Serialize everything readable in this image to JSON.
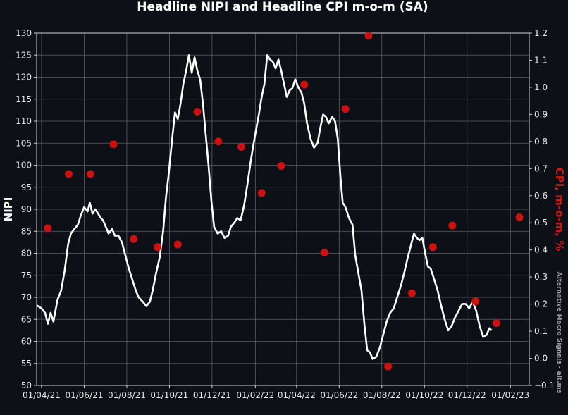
{
  "chart_data": {
    "type": "line",
    "title": "Headline NIPI and Headline CPI m-o-m (SA)",
    "watermark": "Alternative Macro Signals - alt.ms",
    "x_ticks": [
      "01/04/21",
      "01/06/21",
      "01/08/21",
      "01/10/21",
      "01/12/21",
      "01/02/22",
      "01/04/22",
      "01/06/22",
      "01/08/22",
      "01/10/22",
      "01/12/22",
      "01/02/23"
    ],
    "x_range": [
      "2021-03-25",
      "2023-02-28"
    ],
    "left_axis": {
      "label": "NIPI",
      "ylim": [
        50,
        130
      ],
      "ticks": [
        "50",
        "55",
        "60",
        "65",
        "70",
        "75",
        "80",
        "85",
        "90",
        "95",
        "100",
        "105",
        "110",
        "115",
        "120",
        "125",
        "130"
      ]
    },
    "right_axis": {
      "label": "CPI, m-o-m, %",
      "ylim": [
        -0.1,
        1.2
      ],
      "ticks": [
        "−0.1",
        "0.0",
        "0.1",
        "0.2",
        "0.3",
        "0.4",
        "0.5",
        "0.6",
        "0.7",
        "0.8",
        "0.9",
        "1.0",
        "1.1",
        "1.2"
      ]
    },
    "grid": true,
    "colors": {
      "background": "#0d1117",
      "grid": "#5a5f66",
      "nipi_line": "#ffffff",
      "cpi_marker": "#cc1111",
      "right_label": "#dd1111"
    },
    "series": [
      {
        "axis": "left",
        "style": "line",
        "points": [
          [
            "2021-03-25",
            68.2
          ],
          [
            "2021-04-01",
            67.5
          ],
          [
            "2021-04-06",
            66.5
          ],
          [
            "2021-04-10",
            64.0
          ],
          [
            "2021-04-14",
            66.5
          ],
          [
            "2021-04-18",
            64.5
          ],
          [
            "2021-04-24",
            69.5
          ],
          [
            "2021-04-29",
            71.5
          ],
          [
            "2021-05-04",
            76.0
          ],
          [
            "2021-05-09",
            82.0
          ],
          [
            "2021-05-13",
            84.5
          ],
          [
            "2021-05-18",
            85.5
          ],
          [
            "2021-05-23",
            86.5
          ],
          [
            "2021-05-27",
            88.5
          ],
          [
            "2021-06-01",
            90.5
          ],
          [
            "2021-06-06",
            89.5
          ],
          [
            "2021-06-09",
            91.5
          ],
          [
            "2021-06-13",
            89.0
          ],
          [
            "2021-06-17",
            90.0
          ],
          [
            "2021-06-21",
            89.0
          ],
          [
            "2021-06-25",
            88.0
          ],
          [
            "2021-06-28",
            87.5
          ],
          [
            "2021-07-02",
            86.0
          ],
          [
            "2021-07-06",
            84.5
          ],
          [
            "2021-07-11",
            85.5
          ],
          [
            "2021-07-15",
            84.0
          ],
          [
            "2021-07-20",
            84.0
          ],
          [
            "2021-07-25",
            82.5
          ],
          [
            "2021-07-30",
            79.5
          ],
          [
            "2021-08-04",
            76.5
          ],
          [
            "2021-08-09",
            74.0
          ],
          [
            "2021-08-14",
            71.5
          ],
          [
            "2021-08-18",
            70.0
          ],
          [
            "2021-08-24",
            69.0
          ],
          [
            "2021-08-29",
            68.0
          ],
          [
            "2021-09-03",
            69.0
          ],
          [
            "2021-09-07",
            71.5
          ],
          [
            "2021-09-12",
            75.5
          ],
          [
            "2021-09-17",
            79.0
          ],
          [
            "2021-09-22",
            85.0
          ],
          [
            "2021-09-26",
            92.5
          ],
          [
            "2021-09-30",
            98.0
          ],
          [
            "2021-10-05",
            106.0
          ],
          [
            "2021-10-09",
            112.0
          ],
          [
            "2021-10-13",
            110.5
          ],
          [
            "2021-10-17",
            114.0
          ],
          [
            "2021-10-21",
            118.5
          ],
          [
            "2021-10-25",
            121.5
          ],
          [
            "2021-10-29",
            125.0
          ],
          [
            "2021-11-02",
            121.0
          ],
          [
            "2021-11-06",
            124.5
          ],
          [
            "2021-11-10",
            121.5
          ],
          [
            "2021-11-14",
            119.5
          ],
          [
            "2021-11-18",
            114.0
          ],
          [
            "2021-11-22",
            107.0
          ],
          [
            "2021-11-26",
            100.0
          ],
          [
            "2021-11-30",
            92.0
          ],
          [
            "2021-12-04",
            86.0
          ],
          [
            "2021-12-09",
            84.5
          ],
          [
            "2021-12-14",
            85.0
          ],
          [
            "2021-12-19",
            83.5
          ],
          [
            "2021-12-24",
            84.0
          ],
          [
            "2021-12-28",
            86.0
          ],
          [
            "2022-01-02",
            87.0
          ],
          [
            "2022-01-06",
            88.0
          ],
          [
            "2022-01-11",
            87.5
          ],
          [
            "2022-01-16",
            91.0
          ],
          [
            "2022-01-21",
            96.0
          ],
          [
            "2022-01-25",
            100.5
          ],
          [
            "2022-01-29",
            104.5
          ],
          [
            "2022-02-02",
            108.0
          ],
          [
            "2022-02-06",
            111.5
          ],
          [
            "2022-02-10",
            115.5
          ],
          [
            "2022-02-14",
            118.5
          ],
          [
            "2022-02-18",
            125.0
          ],
          [
            "2022-02-22",
            124.0
          ],
          [
            "2022-02-26",
            123.5
          ],
          [
            "2022-03-02",
            122.0
          ],
          [
            "2022-03-06",
            124.0
          ],
          [
            "2022-03-10",
            121.5
          ],
          [
            "2022-03-14",
            118.5
          ],
          [
            "2022-03-18",
            115.5
          ],
          [
            "2022-03-22",
            117.0
          ],
          [
            "2022-03-26",
            117.5
          ],
          [
            "2022-03-30",
            119.5
          ],
          [
            "2022-04-04",
            117.5
          ],
          [
            "2022-04-08",
            116.5
          ],
          [
            "2022-04-12",
            114.0
          ],
          [
            "2022-04-16",
            109.5
          ],
          [
            "2022-04-21",
            106.0
          ],
          [
            "2022-04-26",
            104.0
          ],
          [
            "2022-05-01",
            105.0
          ],
          [
            "2022-05-05",
            108.5
          ],
          [
            "2022-05-09",
            111.5
          ],
          [
            "2022-05-13",
            111.0
          ],
          [
            "2022-05-17",
            109.5
          ],
          [
            "2022-05-22",
            111.0
          ],
          [
            "2022-05-26",
            110.0
          ],
          [
            "2022-05-30",
            106.0
          ],
          [
            "2022-06-03",
            97.0
          ],
          [
            "2022-06-06",
            91.5
          ],
          [
            "2022-06-10",
            90.5
          ],
          [
            "2022-06-15",
            88.0
          ],
          [
            "2022-06-20",
            86.5
          ],
          [
            "2022-06-24",
            79.5
          ],
          [
            "2022-06-29",
            75.0
          ],
          [
            "2022-07-03",
            71.5
          ],
          [
            "2022-07-07",
            64.0
          ],
          [
            "2022-07-11",
            58.0
          ],
          [
            "2022-07-15",
            57.5
          ],
          [
            "2022-07-19",
            56.0
          ],
          [
            "2022-07-24",
            56.5
          ],
          [
            "2022-07-29",
            58.5
          ],
          [
            "2022-08-03",
            61.5
          ],
          [
            "2022-08-08",
            64.5
          ],
          [
            "2022-08-13",
            66.5
          ],
          [
            "2022-08-18",
            67.5
          ],
          [
            "2022-08-23",
            70.0
          ],
          [
            "2022-08-28",
            72.5
          ],
          [
            "2022-09-02",
            75.5
          ],
          [
            "2022-09-07",
            79.0
          ],
          [
            "2022-09-12",
            82.0
          ],
          [
            "2022-09-16",
            84.5
          ],
          [
            "2022-09-20",
            83.5
          ],
          [
            "2022-09-24",
            83.0
          ],
          [
            "2022-09-28",
            83.5
          ],
          [
            "2022-10-02",
            80.0
          ],
          [
            "2022-10-06",
            77.0
          ],
          [
            "2022-10-10",
            76.5
          ],
          [
            "2022-10-15",
            74.0
          ],
          [
            "2022-10-20",
            71.5
          ],
          [
            "2022-10-25",
            68.0
          ],
          [
            "2022-10-30",
            65.0
          ],
          [
            "2022-11-04",
            62.5
          ],
          [
            "2022-11-09",
            63.5
          ],
          [
            "2022-11-14",
            65.5
          ],
          [
            "2022-11-19",
            67.0
          ],
          [
            "2022-11-24",
            68.5
          ],
          [
            "2022-11-29",
            68.5
          ],
          [
            "2022-12-04",
            67.5
          ],
          [
            "2022-12-09",
            69.0
          ],
          [
            "2022-12-14",
            67.0
          ],
          [
            "2022-12-19",
            63.5
          ],
          [
            "2022-12-24",
            61.0
          ],
          [
            "2022-12-29",
            61.5
          ],
          [
            "2023-01-02",
            63.0
          ],
          [
            "2023-01-05",
            62.5
          ]
        ]
      },
      {
        "axis": "right",
        "style": "scatter",
        "points": [
          [
            "2021-04-10",
            0.48
          ],
          [
            "2021-05-10",
            0.68
          ],
          [
            "2021-06-10",
            0.68
          ],
          [
            "2021-07-13",
            0.79
          ],
          [
            "2021-08-11",
            0.44
          ],
          [
            "2021-09-14",
            0.41
          ],
          [
            "2021-10-13",
            0.42
          ],
          [
            "2021-11-10",
            0.91
          ],
          [
            "2021-12-10",
            0.8
          ],
          [
            "2022-01-12",
            0.78
          ],
          [
            "2022-02-10",
            0.61
          ],
          [
            "2022-03-10",
            0.71
          ],
          [
            "2022-04-12",
            1.01
          ],
          [
            "2022-05-11",
            0.39
          ],
          [
            "2022-06-10",
            0.92
          ],
          [
            "2022-07-13",
            1.19
          ],
          [
            "2022-08-10",
            -0.03
          ],
          [
            "2022-09-13",
            0.24
          ],
          [
            "2022-10-13",
            0.41
          ],
          [
            "2022-11-10",
            0.49
          ],
          [
            "2022-12-13",
            0.21
          ],
          [
            "2023-01-12",
            0.13
          ],
          [
            "2023-02-14",
            0.52
          ]
        ]
      }
    ]
  }
}
